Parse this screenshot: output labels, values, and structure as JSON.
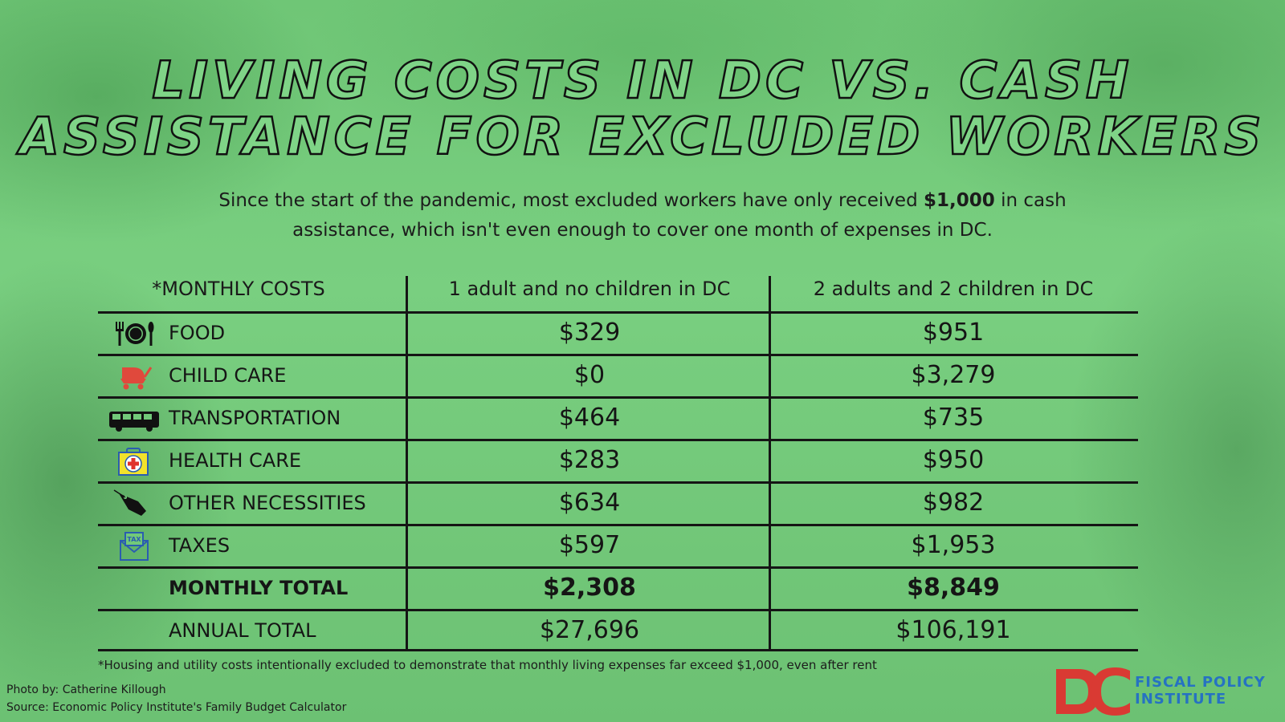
{
  "title_line1": "Living Costs in DC vs. Cash",
  "title_line2": "Assistance for Excluded Workers",
  "subtitle": {
    "before": "Since the start of the pandemic, most excluded workers have only received ",
    "amount": "$1,000",
    "after": " in cash assistance, which isn't even enough to cover one month of expenses in DC."
  },
  "table": {
    "headers": [
      "*MONTHLY COSTS",
      "1 adult and no children in DC",
      "2 adults and 2 children in DC"
    ],
    "rows": [
      {
        "icon": "food-icon",
        "label": "FOOD",
        "one_adult": "$329",
        "family": "$951"
      },
      {
        "icon": "stroller-icon",
        "label": "CHILD CARE",
        "one_adult": "$0",
        "family": "$3,279"
      },
      {
        "icon": "bus-icon",
        "label": "TRANSPORTATION",
        "one_adult": "$464",
        "family": "$735"
      },
      {
        "icon": "medical-kit-icon",
        "label": "HEALTH CARE",
        "one_adult": "$283",
        "family": "$950"
      },
      {
        "icon": "price-tag-icon",
        "label": "OTHER NECESSITIES",
        "one_adult": "$634",
        "family": "$982"
      },
      {
        "icon": "tax-envelope-icon",
        "label": "TAXES",
        "one_adult": "$597",
        "family": "$1,953"
      }
    ],
    "monthly_total": {
      "label": "MONTHLY TOTAL",
      "one_adult": "$2,308",
      "family": "$8,849"
    },
    "annual_total": {
      "label": "ANNUAL TOTAL",
      "one_adult": "$27,696",
      "family": "$106,191"
    }
  },
  "footnote": "*Housing and utility costs intentionally excluded to demonstrate that monthly living expenses far exceed $1,000, even after rent",
  "credits": {
    "photo": "Photo by: Catherine Killough",
    "source": "Source: Economic Policy Institute's Family Budget Calculator"
  },
  "logo": {
    "mark": "DC",
    "line1": "FISCAL POLICY",
    "line2": "INSTITUTE"
  },
  "colors": {
    "background": "#72c979",
    "logo_red": "#d93a33",
    "logo_blue": "#2672c2",
    "text": "#151515"
  }
}
